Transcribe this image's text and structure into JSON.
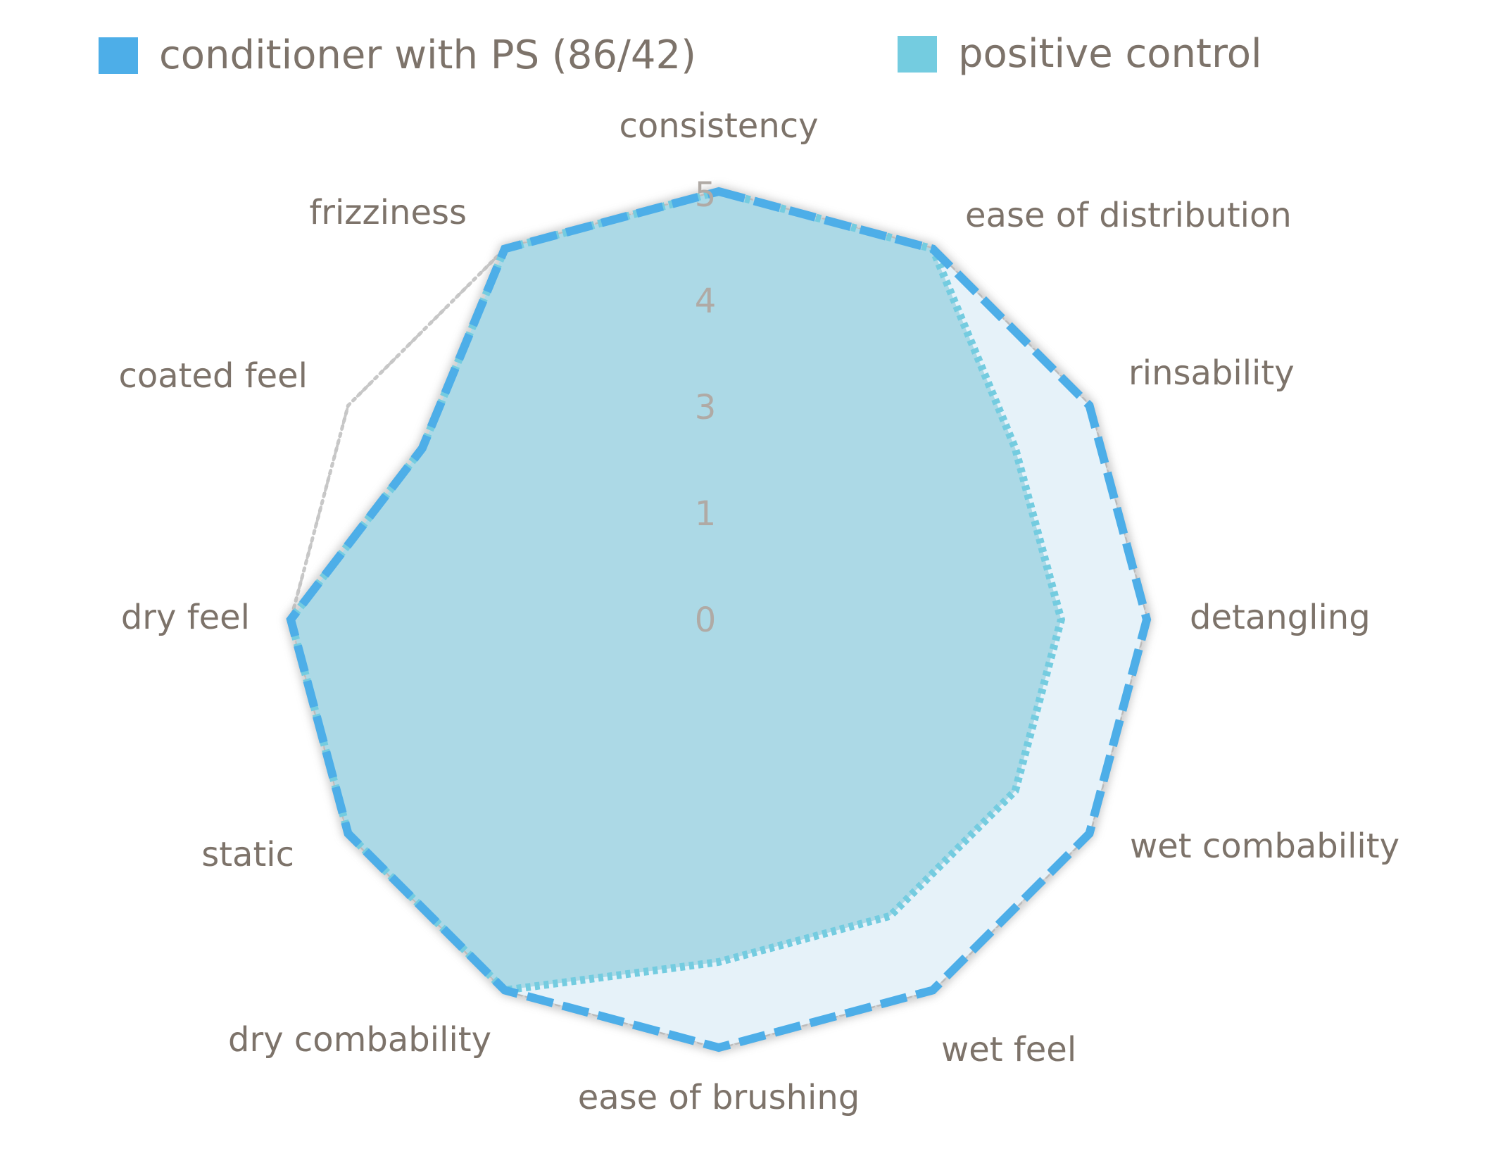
{
  "chart_data": {
    "type": "radar",
    "title": "",
    "categories": [
      "consistency",
      "ease of distribution",
      "rinsability",
      "detangling",
      "wet combability",
      "wet feel",
      "ease of brushing",
      "dry combability",
      "static",
      "dry feel",
      "coated feel",
      "frizziness"
    ],
    "series": [
      {
        "name": "conditioner with PS (86/42)",
        "values": [
          5,
          5,
          5,
          5,
          5,
          5,
          5,
          5,
          5,
          5,
          4,
          5
        ],
        "color": "#4daee8"
      },
      {
        "name": "positive control",
        "values": [
          5,
          5,
          4,
          4,
          4,
          4,
          4,
          5,
          5,
          5,
          4,
          5
        ],
        "color": "#74cce0"
      },
      {
        "name": "",
        "values": [
          5,
          5,
          4,
          4,
          4,
          4,
          4,
          5,
          5,
          5,
          5,
          5
        ],
        "color": "#c8c8c8"
      }
    ],
    "r_ticks": [
      "0",
      "1",
      "3",
      "4",
      "5"
    ],
    "r_range": [
      0,
      5
    ],
    "grid": true,
    "legend_position": "top"
  },
  "colors": {
    "series_a_fill": "#e6f2f9",
    "series_b_fill": "#acd9e6",
    "grid": "#c5c5c5",
    "text": "#7d736a",
    "tick_text": "#b0aaa5"
  }
}
